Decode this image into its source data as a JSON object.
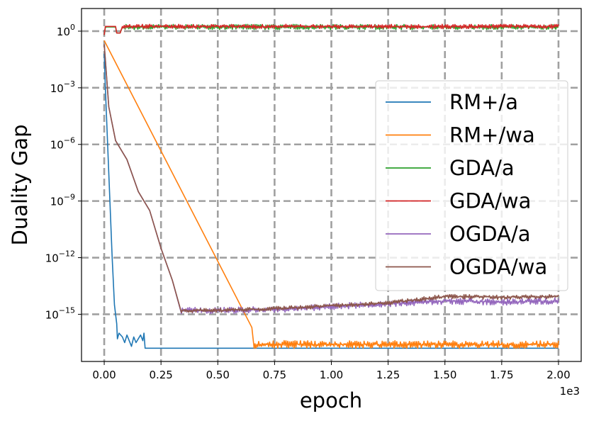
{
  "chart_data": {
    "type": "line",
    "title": "",
    "xlabel": "epoch",
    "ylabel": "Duality Gap",
    "x_scale_label": "1e3",
    "xlim": [
      -0.1,
      2.1
    ],
    "ylim_log10": [
      -17.5,
      1.2
    ],
    "yscale": "log",
    "grid": true,
    "legend_position": "center-right",
    "x_ticks": [
      {
        "value": 0.0,
        "label": "0.00"
      },
      {
        "value": 0.25,
        "label": "0.25"
      },
      {
        "value": 0.5,
        "label": "0.50"
      },
      {
        "value": 0.75,
        "label": "0.75"
      },
      {
        "value": 1.0,
        "label": "1.00"
      },
      {
        "value": 1.25,
        "label": "1.25"
      },
      {
        "value": 1.5,
        "label": "1.50"
      },
      {
        "value": 1.75,
        "label": "1.75"
      },
      {
        "value": 2.0,
        "label": "2.00"
      }
    ],
    "y_ticks": [
      {
        "exp": 0,
        "base": "10",
        "sup": "0"
      },
      {
        "exp": -3,
        "base": "10",
        "sup": "−3"
      },
      {
        "exp": -6,
        "base": "10",
        "sup": "−6"
      },
      {
        "exp": -9,
        "base": "10",
        "sup": "−9"
      },
      {
        "exp": -12,
        "base": "10",
        "sup": "−12"
      },
      {
        "exp": -15,
        "base": "10",
        "sup": "−15"
      }
    ],
    "series": [
      {
        "name": "RM+/a",
        "color": "#1f77b4",
        "x": [
          0,
          0.005,
          0.015,
          0.025,
          0.035,
          0.045,
          0.055,
          0.058,
          0.065,
          0.08,
          0.09,
          0.1,
          0.11,
          0.12,
          0.13,
          0.14,
          0.15,
          0.16,
          0.17,
          0.175,
          0.18,
          0.3,
          0.6,
          1.0,
          1.5,
          2.0
        ],
        "y": [
          -1.2,
          -3.0,
          -6.0,
          -9.0,
          -12.0,
          -14.5,
          -15.5,
          -16.3,
          -16.0,
          -16.2,
          -16.5,
          -16.1,
          -16.4,
          -16.7,
          -16.2,
          -16.5,
          -16.3,
          -16.1,
          -16.4,
          -16.0,
          -16.8,
          -16.8,
          -16.8,
          -16.8,
          -16.8,
          -16.8
        ]
      },
      {
        "name": "RM+/wa",
        "color": "#ff7f0e",
        "x": [
          0,
          0.65,
          0.66,
          2.0
        ],
        "y": [
          -0.5,
          -15.7,
          -16.6,
          -16.6
        ],
        "noise_after": 0.66,
        "noise_amp": 0.18
      },
      {
        "name": "GDA/a",
        "color": "#2ca02c",
        "x": [
          0,
          0.005,
          0.01,
          0.05,
          0.055,
          0.07,
          0.08,
          2.0
        ],
        "y": [
          -0.2,
          0.2,
          0.22,
          0.22,
          -0.1,
          -0.1,
          0.22,
          0.22
        ],
        "noise_after": 0.08,
        "noise_amp": 0.12
      },
      {
        "name": "GDA/wa",
        "color": "#d62728",
        "x": [
          0,
          0.005,
          0.01,
          0.05,
          0.055,
          0.07,
          0.08,
          2.0
        ],
        "y": [
          -0.2,
          0.25,
          0.25,
          0.25,
          -0.1,
          -0.1,
          0.25,
          0.25
        ],
        "noise_after": 0.08,
        "noise_amp": 0.1
      },
      {
        "name": "OGDA/a",
        "color": "#9467bd",
        "x": [
          0,
          0.02,
          0.05,
          0.1,
          0.15,
          0.2,
          0.25,
          0.3,
          0.34,
          0.5,
          0.75,
          1.0,
          1.25,
          1.5,
          1.75,
          2.0
        ],
        "y": [
          -0.7,
          -4.0,
          -5.8,
          -6.8,
          -8.5,
          -9.5,
          -11.5,
          -13.2,
          -14.8,
          -14.8,
          -14.75,
          -14.6,
          -14.45,
          -14.3,
          -14.35,
          -14.3
        ],
        "noise_after": 0.34,
        "noise_amp": 0.15
      },
      {
        "name": "OGDA/wa",
        "color": "#8c564b",
        "x": [
          0,
          0.02,
          0.05,
          0.1,
          0.15,
          0.2,
          0.25,
          0.3,
          0.34,
          0.5,
          0.75,
          1.0,
          1.25,
          1.5,
          1.75,
          2.0
        ],
        "y": [
          -0.7,
          -4.0,
          -5.8,
          -6.8,
          -8.5,
          -9.5,
          -11.5,
          -13.2,
          -14.8,
          -14.8,
          -14.7,
          -14.55,
          -14.4,
          -14.05,
          -14.1,
          -14.05
        ],
        "noise_after": 0.34,
        "noise_amp": 0.1
      }
    ]
  }
}
